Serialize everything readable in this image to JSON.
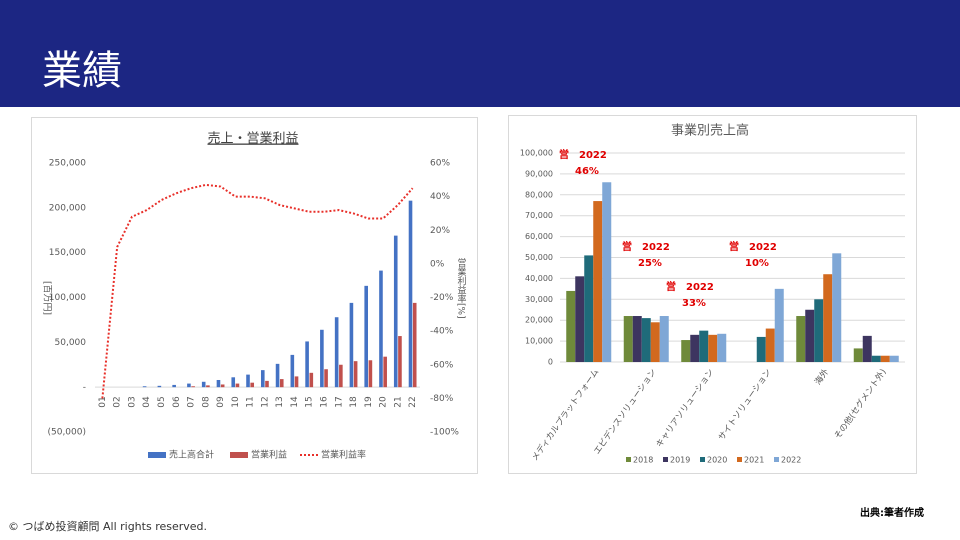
{
  "header": {
    "title": "業績"
  },
  "chart_data": [
    {
      "type": "bar",
      "title": "売上・営業利益",
      "ylabel": "[百万円]",
      "y2label": "営業利益率[%]",
      "categories": [
        "01",
        "02",
        "03",
        "04",
        "05",
        "06",
        "07",
        "08",
        "09",
        "10",
        "11",
        "12",
        "13",
        "14",
        "15",
        "16",
        "17",
        "18",
        "19",
        "20",
        "21",
        "22"
      ],
      "series": [
        {
          "name": "売上高合計",
          "color": "#4472c4",
          "values": [
            0,
            0,
            0,
            1000,
            1500,
            2500,
            4000,
            6000,
            8000,
            11000,
            14000,
            19000,
            26000,
            36000,
            51000,
            64000,
            78000,
            94000,
            113000,
            130000,
            169000,
            208000
          ]
        },
        {
          "name": "営業利益",
          "color": "#c0504d",
          "values": [
            0,
            0,
            0,
            0,
            0,
            0,
            1000,
            2000,
            3000,
            4000,
            5000,
            7000,
            9000,
            12000,
            16000,
            20000,
            25000,
            29000,
            30000,
            34000,
            57000,
            94000
          ]
        },
        {
          "name": "営業利益率",
          "color": "#e8302a",
          "type": "line",
          "axis": "y2",
          "values": [
            -80,
            10,
            28,
            32,
            38,
            42,
            45,
            47,
            46,
            40,
            40,
            39,
            35,
            33,
            31,
            31,
            32,
            30,
            27,
            27,
            35,
            45
          ]
        }
      ],
      "ylim": [
        -50000,
        250000
      ],
      "yticks": [
        {
          "value": -50000,
          "label": "(50,000)"
        },
        {
          "value": 0,
          "label": "-"
        },
        {
          "value": 50000,
          "label": "50,000"
        },
        {
          "value": 100000,
          "label": "100,000"
        },
        {
          "value": 150000,
          "label": "150,000"
        },
        {
          "value": 200000,
          "label": "200,000"
        },
        {
          "value": 250000,
          "label": "250,000"
        }
      ],
      "y2lim": [
        -100,
        60
      ],
      "y2ticks": [
        {
          "value": -100,
          "label": "-100%"
        },
        {
          "value": -80,
          "label": "-80%"
        },
        {
          "value": -60,
          "label": "-60%"
        },
        {
          "value": -40,
          "label": "-40%"
        },
        {
          "value": -20,
          "label": "-20%"
        },
        {
          "value": 0,
          "label": "0%"
        },
        {
          "value": 20,
          "label": "20%"
        },
        {
          "value": 40,
          "label": "40%"
        },
        {
          "value": 60,
          "label": "60%"
        }
      ],
      "grid": false,
      "legend": "bottom"
    },
    {
      "type": "bar",
      "title": "事業別売上高",
      "categories": [
        "メディカルプラットフォーム",
        "エビデンスソリューション",
        "キャリアソリューション",
        "サイトソリューション",
        "海外",
        "その他(セグメント外)"
      ],
      "series": [
        {
          "name": "2018",
          "color": "#6f8a3a",
          "values": [
            34000,
            22000,
            10500,
            null,
            22000,
            6500
          ]
        },
        {
          "name": "2019",
          "color": "#3d3560",
          "values": [
            41000,
            22000,
            13000,
            null,
            25000,
            12500
          ]
        },
        {
          "name": "2020",
          "color": "#1f6b7a",
          "values": [
            51000,
            21000,
            15000,
            12000,
            30000,
            3000
          ]
        },
        {
          "name": "2021",
          "color": "#d2691e",
          "values": [
            77000,
            19000,
            13000,
            16000,
            42000,
            3000
          ]
        },
        {
          "name": "2022",
          "color": "#7fa7d6",
          "values": [
            86000,
            22000,
            13500,
            35000,
            52000,
            3000
          ]
        }
      ],
      "ylim": [
        0,
        100000
      ],
      "yticks": [
        0,
        {
          "value": 10000,
          "label": "10,000"
        },
        {
          "value": 20000,
          "label": "20,000"
        },
        {
          "value": 30000,
          "label": "30,000"
        },
        {
          "value": 40000,
          "label": "40,000"
        },
        {
          "value": 50000,
          "label": "50,000"
        },
        {
          "value": 60000,
          "label": "60,000"
        },
        {
          "value": 70000,
          "label": "70,000"
        },
        {
          "value": 80000,
          "label": "80,000"
        },
        {
          "value": 90000,
          "label": "90,000"
        },
        {
          "value": 100000,
          "label": "100,000"
        }
      ],
      "grid": true,
      "legend": "bottom",
      "annotations": [
        {
          "label": "営　2022",
          "rate": "46%"
        },
        {
          "label": "営　2022",
          "rate": "25%"
        },
        {
          "label": "営　2022",
          "rate": "33%"
        },
        {
          "label": "営　2022",
          "rate": "10%"
        }
      ]
    }
  ],
  "footer": {
    "copyright": "© つばめ投資顧問 All rights reserved.",
    "source": "出典:筆者作成"
  }
}
